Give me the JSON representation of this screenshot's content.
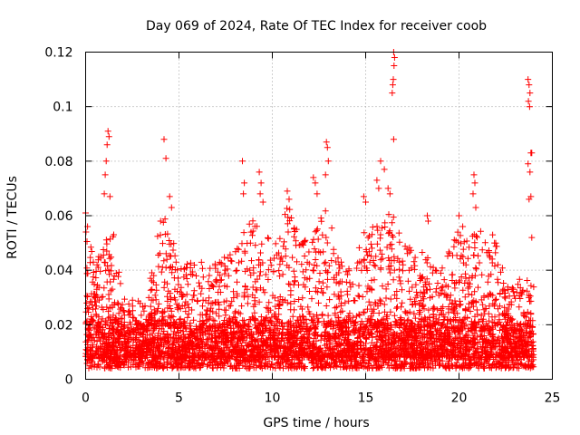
{
  "chart_data": {
    "type": "scatter",
    "title": "Day 069 of 2024, Rate Of TEC Index for receiver coob",
    "xlabel": "GPS time / hours",
    "ylabel": "ROTI / TECUs",
    "xlim": [
      0,
      25
    ],
    "ylim": [
      0,
      0.12
    ],
    "x_ticks": [
      0,
      5,
      10,
      15,
      20,
      25
    ],
    "x_tick_labels": [
      "0",
      "5",
      "10",
      "15",
      "20",
      "25"
    ],
    "y_ticks": [
      0,
      0.02,
      0.04,
      0.06,
      0.08,
      0.1,
      0.12
    ],
    "y_tick_labels": [
      "0",
      "0.02",
      "0.04",
      "0.06",
      "0.08",
      "0.1",
      "0.12"
    ],
    "grid": true,
    "marker": "plus",
    "series": [
      {
        "name": "ROTI",
        "color": "#ff0000",
        "baseline": {
          "x_range": [
            0,
            24
          ],
          "typical_min": 0.004,
          "typical_max": 0.022,
          "samples": 2400
        },
        "envelope": {
          "hours": [
            0,
            0.5,
            1,
            1.5,
            2,
            2.5,
            3,
            3.5,
            4,
            4.5,
            5,
            5.5,
            6,
            6.5,
            7,
            7.5,
            8,
            8.5,
            9,
            9.5,
            10,
            10.5,
            11,
            11.5,
            12,
            12.5,
            13,
            13.5,
            14,
            14.5,
            15,
            15.5,
            16,
            16.5,
            17,
            17.5,
            18,
            18.5,
            19,
            19.5,
            20,
            20.5,
            21,
            21.5,
            22,
            22.5,
            23,
            23.5,
            24
          ],
          "upper": [
            0.055,
            0.045,
            0.05,
            0.055,
            0.03,
            0.03,
            0.028,
            0.038,
            0.06,
            0.058,
            0.04,
            0.045,
            0.045,
            0.04,
            0.045,
            0.045,
            0.048,
            0.055,
            0.06,
            0.05,
            0.055,
            0.062,
            0.065,
            0.05,
            0.055,
            0.058,
            0.065,
            0.045,
            0.04,
            0.045,
            0.058,
            0.06,
            0.065,
            0.06,
            0.05,
            0.048,
            0.05,
            0.045,
            0.042,
            0.048,
            0.055,
            0.05,
            0.06,
            0.048,
            0.052,
            0.035,
            0.035,
            0.04,
            0.04
          ]
        },
        "spikes": [
          {
            "x": 1.2,
            "y": 0.091
          },
          {
            "x": 1.25,
            "y": 0.089
          },
          {
            "x": 1.15,
            "y": 0.086
          },
          {
            "x": 1.1,
            "y": 0.08
          },
          {
            "x": 1.05,
            "y": 0.075
          },
          {
            "x": 1.0,
            "y": 0.068
          },
          {
            "x": 1.3,
            "y": 0.067
          },
          {
            "x": 4.2,
            "y": 0.088
          },
          {
            "x": 4.3,
            "y": 0.081
          },
          {
            "x": 4.5,
            "y": 0.067
          },
          {
            "x": 4.6,
            "y": 0.063
          },
          {
            "x": 8.4,
            "y": 0.08
          },
          {
            "x": 8.5,
            "y": 0.072
          },
          {
            "x": 8.45,
            "y": 0.068
          },
          {
            "x": 9.3,
            "y": 0.076
          },
          {
            "x": 9.4,
            "y": 0.072
          },
          {
            "x": 9.35,
            "y": 0.068
          },
          {
            "x": 9.5,
            "y": 0.065
          },
          {
            "x": 10.8,
            "y": 0.069
          },
          {
            "x": 10.9,
            "y": 0.066
          },
          {
            "x": 12.2,
            "y": 0.074
          },
          {
            "x": 12.3,
            "y": 0.072
          },
          {
            "x": 12.4,
            "y": 0.068
          },
          {
            "x": 12.9,
            "y": 0.087
          },
          {
            "x": 12.95,
            "y": 0.085
          },
          {
            "x": 13.0,
            "y": 0.08
          },
          {
            "x": 12.85,
            "y": 0.075
          },
          {
            "x": 14.9,
            "y": 0.067
          },
          {
            "x": 15.0,
            "y": 0.065
          },
          {
            "x": 15.6,
            "y": 0.073
          },
          {
            "x": 15.7,
            "y": 0.07
          },
          {
            "x": 15.8,
            "y": 0.08
          },
          {
            "x": 16.0,
            "y": 0.077
          },
          {
            "x": 16.2,
            "y": 0.07
          },
          {
            "x": 16.3,
            "y": 0.068
          },
          {
            "x": 16.5,
            "y": 0.12
          },
          {
            "x": 16.55,
            "y": 0.118
          },
          {
            "x": 16.52,
            "y": 0.115
          },
          {
            "x": 16.48,
            "y": 0.11
          },
          {
            "x": 16.45,
            "y": 0.108
          },
          {
            "x": 16.42,
            "y": 0.105
          },
          {
            "x": 16.5,
            "y": 0.088
          },
          {
            "x": 18.3,
            "y": 0.06
          },
          {
            "x": 18.35,
            "y": 0.058
          },
          {
            "x": 20.0,
            "y": 0.06
          },
          {
            "x": 20.2,
            "y": 0.056
          },
          {
            "x": 20.8,
            "y": 0.075
          },
          {
            "x": 20.85,
            "y": 0.072
          },
          {
            "x": 20.75,
            "y": 0.068
          },
          {
            "x": 20.9,
            "y": 0.063
          },
          {
            "x": 21.8,
            "y": 0.053
          },
          {
            "x": 21.9,
            "y": 0.05
          },
          {
            "x": 23.7,
            "y": 0.11
          },
          {
            "x": 23.75,
            "y": 0.108
          },
          {
            "x": 23.8,
            "y": 0.105
          },
          {
            "x": 23.72,
            "y": 0.102
          },
          {
            "x": 23.78,
            "y": 0.1
          },
          {
            "x": 23.85,
            "y": 0.083
          },
          {
            "x": 23.9,
            "y": 0.083
          },
          {
            "x": 23.7,
            "y": 0.079
          },
          {
            "x": 23.8,
            "y": 0.076
          },
          {
            "x": 23.85,
            "y": 0.067
          },
          {
            "x": 23.75,
            "y": 0.066
          },
          {
            "x": 23.9,
            "y": 0.052
          },
          {
            "x": 0.0,
            "y": 0.061
          },
          {
            "x": 0.1,
            "y": 0.056
          }
        ]
      }
    ]
  }
}
